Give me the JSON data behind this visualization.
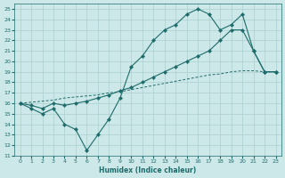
{
  "xlabel": "Humidex (Indice chaleur)",
  "background_color": "#cde8e8",
  "line_color": "#1e6b6b",
  "grid_color": "#aacfcf",
  "xlim": [
    -0.5,
    23.5
  ],
  "ylim": [
    11,
    25.5
  ],
  "xticks": [
    0,
    1,
    2,
    3,
    4,
    5,
    6,
    7,
    8,
    9,
    10,
    11,
    12,
    13,
    14,
    15,
    16,
    17,
    18,
    19,
    20,
    21,
    22,
    23
  ],
  "yticks": [
    11,
    12,
    13,
    14,
    15,
    16,
    17,
    18,
    19,
    20,
    21,
    22,
    23,
    24,
    25
  ],
  "series": [
    {
      "x": [
        0,
        1,
        2,
        3,
        4,
        5,
        6,
        7,
        8,
        9,
        10,
        11,
        12,
        13,
        14,
        15,
        16,
        17,
        18,
        19,
        20,
        21,
        22,
        23
      ],
      "y": [
        16,
        15.5,
        15,
        15.5,
        14,
        13.5,
        11.5,
        13,
        14.5,
        16.5,
        19.5,
        20.5,
        22,
        23,
        23.5,
        24.5,
        25,
        24.5,
        23,
        23.5,
        24.5,
        21,
        19,
        19
      ],
      "marker": true
    },
    {
      "x": [
        0,
        1,
        2,
        3,
        4,
        5,
        6,
        7,
        8,
        9,
        10,
        11,
        12,
        13,
        14,
        15,
        16,
        17,
        18,
        19,
        20,
        21,
        22,
        23
      ],
      "y": [
        16,
        15.8,
        15.5,
        16,
        15.8,
        16,
        16.2,
        16.5,
        16.8,
        17.2,
        17.5,
        18,
        18.5,
        19,
        19.5,
        20,
        20.5,
        21,
        22,
        23,
        23,
        21,
        19,
        19
      ],
      "marker": true
    },
    {
      "x": [
        0,
        1,
        2,
        3,
        4,
        5,
        6,
        7,
        8,
        9,
        10,
        11,
        12,
        13,
        14,
        15,
        16,
        17,
        18,
        19,
        20,
        21,
        22,
        23
      ],
      "y": [
        16,
        16.1,
        16.2,
        16.3,
        16.5,
        16.6,
        16.7,
        16.8,
        17.0,
        17.1,
        17.3,
        17.5,
        17.7,
        17.9,
        18.1,
        18.3,
        18.5,
        18.7,
        18.8,
        19.0,
        19.1,
        19.1,
        19.0,
        19.0
      ],
      "marker": false
    }
  ]
}
